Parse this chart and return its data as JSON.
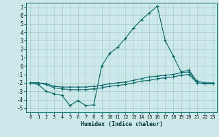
{
  "xlabel": "Humidex (Indice chaleur)",
  "background_color": "#cce8e8",
  "grid_color": "#aacccc",
  "line_color": "#006666",
  "xlim": [
    -0.5,
    23.5
  ],
  "ylim": [
    -5.5,
    7.5
  ],
  "x": [
    0,
    1,
    2,
    3,
    4,
    5,
    6,
    7,
    8,
    9,
    10,
    11,
    12,
    13,
    14,
    15,
    16,
    17,
    18,
    19,
    20,
    21,
    22,
    23
  ],
  "line1_y": [
    -2.0,
    -2.2,
    -3.0,
    -3.3,
    -3.5,
    -4.7,
    -4.1,
    -4.7,
    -4.6,
    0.0,
    1.5,
    2.2,
    3.3,
    4.5,
    5.5,
    6.3,
    7.1,
    3.0,
    1.2,
    -0.7,
    -0.5,
    -1.8,
    -2.0,
    -2.0
  ],
  "line2_y": [
    -2.0,
    -2.0,
    -2.1,
    -2.4,
    -2.5,
    -2.5,
    -2.5,
    -2.5,
    -2.4,
    -2.3,
    -2.1,
    -2.0,
    -1.9,
    -1.7,
    -1.5,
    -1.3,
    -1.2,
    -1.1,
    -1.0,
    -0.8,
    -0.7,
    -2.0,
    -2.1,
    -2.1
  ],
  "line3_y": [
    -2.0,
    -2.0,
    -2.2,
    -2.6,
    -2.7,
    -2.8,
    -2.8,
    -2.8,
    -2.7,
    -2.6,
    -2.4,
    -2.3,
    -2.2,
    -2.0,
    -1.8,
    -1.7,
    -1.5,
    -1.4,
    -1.3,
    -1.1,
    -1.0,
    -2.0,
    -2.1,
    -2.1
  ],
  "yticks": [
    -5,
    -4,
    -3,
    -2,
    -1,
    0,
    1,
    2,
    3,
    4,
    5,
    6,
    7
  ],
  "xticks": [
    0,
    1,
    2,
    3,
    4,
    5,
    6,
    7,
    8,
    9,
    10,
    11,
    12,
    13,
    14,
    15,
    16,
    17,
    18,
    19,
    20,
    21,
    22,
    23
  ]
}
